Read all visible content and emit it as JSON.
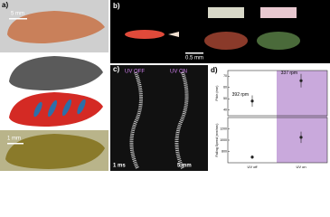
{
  "panels": {
    "a": {
      "label": "a)",
      "scale_bars": [
        "5 mm",
        "1 mm"
      ]
    },
    "b": {
      "label": "b)",
      "scale_bars": [
        "0.5 mm"
      ]
    },
    "c": {
      "label": "c)",
      "captions": [
        "UV OFF",
        "UV ON"
      ],
      "scale_bars": [
        "1 ms",
        "5 mm"
      ]
    },
    "d": {
      "label": "d)"
    }
  },
  "chart_data": [
    {
      "type": "scatter",
      "ylabel": "Pitch (mm)",
      "values": [
        48,
        66
      ],
      "errors": [
        5,
        6
      ],
      "annotations": [
        "392 rpm",
        "337 rpm"
      ],
      "color": "#222222",
      "ylim": [
        35,
        75
      ],
      "yticks": [
        40,
        50,
        60,
        70
      ]
    },
    {
      "type": "scatter",
      "ylabel": "Falling Speed (mm/sec)",
      "categories": [
        "UV off",
        "UV on"
      ],
      "values": [
        700,
        1050
      ],
      "errors": [
        30,
        100
      ],
      "color": "#222222",
      "ylim": [
        600,
        1400
      ],
      "yticks": [
        800,
        1000,
        1200
      ]
    }
  ]
}
